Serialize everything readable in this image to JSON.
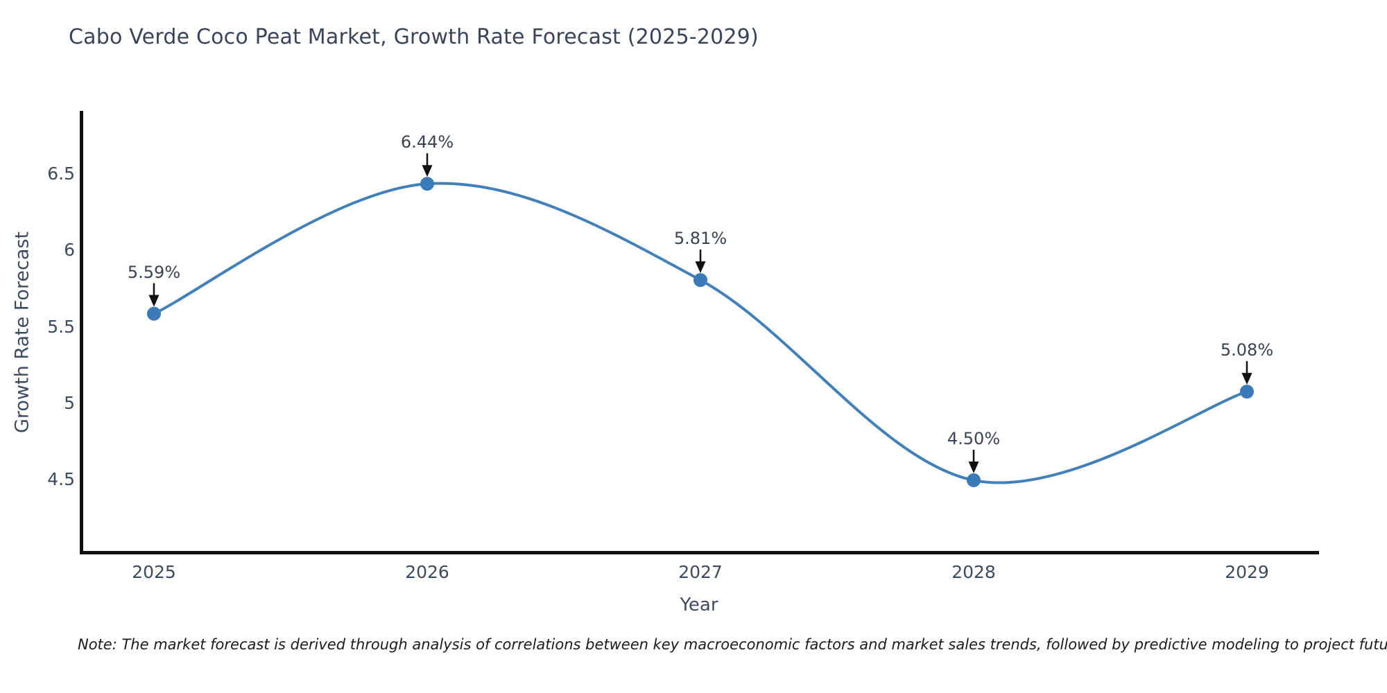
{
  "title": "Cabo Verde Coco Peat Market, Growth Rate Forecast (2025-2029)",
  "note": "Note: The market forecast is derived through analysis of correlations between key macroeconomic factors and market sales trends, followed by predictive modeling to project future sales",
  "chart_data": {
    "type": "line",
    "title": "Cabo Verde Coco Peat Market, Growth Rate Forecast (2025-2029)",
    "xlabel": "Year",
    "ylabel": "Growth Rate Forecast",
    "categories": [
      "2025",
      "2026",
      "2027",
      "2028",
      "2029"
    ],
    "values": [
      5.59,
      6.44,
      5.81,
      4.5,
      5.08
    ],
    "point_labels": [
      "5.59%",
      "6.44%",
      "5.81%",
      "4.50%",
      "5.08%"
    ],
    "ytick_labels": [
      "4.5",
      "5",
      "5.5",
      "6",
      "6.5"
    ],
    "ytick_values": [
      4.5,
      5.0,
      5.5,
      6.0,
      6.5
    ],
    "ylim": [
      4.015,
      6.917
    ],
    "grid": false,
    "legend": "none",
    "smooth": true,
    "annotations_arrows": true,
    "colors": {
      "line": "#4180b9",
      "marker": "#3a7ab8",
      "arrow": "#111111",
      "axis": "#111111",
      "title_text": "#3a4458",
      "tick_text": "#3d4a5c"
    }
  }
}
